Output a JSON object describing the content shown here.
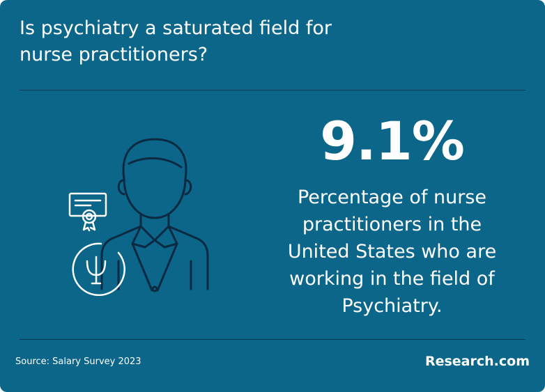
{
  "header": {
    "title": "Is psychiatry a saturated field for nurse practitioners?"
  },
  "stat": {
    "value": "9.1%",
    "description": "Percentage of nurse practitioners in the United States who are working in the field of Psychiatry."
  },
  "footer": {
    "source": "Source:  Salary Survey 2023",
    "brand": "Research.com"
  }
}
